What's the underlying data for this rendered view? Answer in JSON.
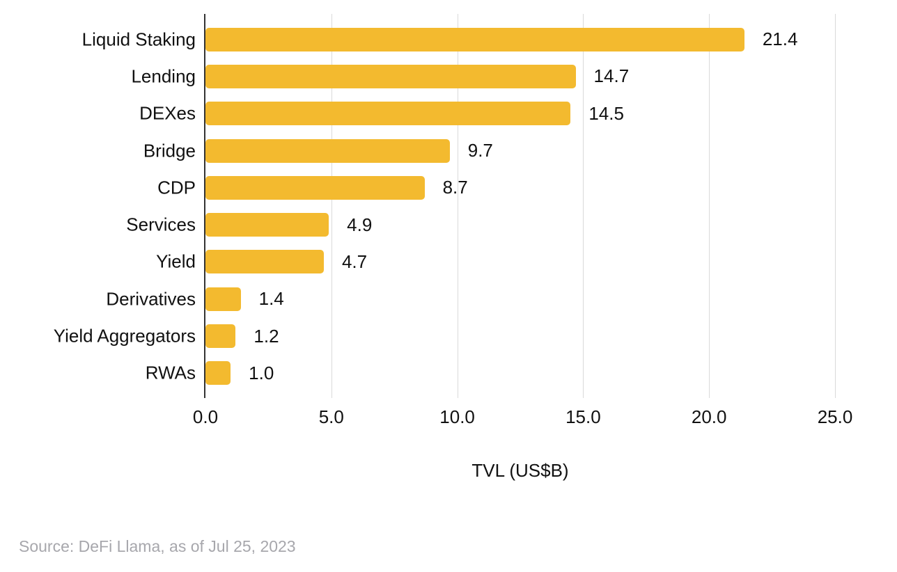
{
  "chart_data": {
    "type": "bar",
    "orientation": "horizontal",
    "title": "",
    "categories": [
      "Liquid Staking",
      "Lending",
      "DEXes",
      "Bridge",
      "CDP",
      "Services",
      "Yield",
      "Derivatives",
      "Yield Aggregators",
      "RWAs"
    ],
    "values": [
      21.4,
      14.7,
      14.5,
      9.7,
      8.7,
      4.9,
      4.7,
      1.4,
      1.2,
      1.0
    ],
    "value_labels": [
      "21.4",
      "14.7",
      "14.5",
      "9.7",
      "8.7",
      "4.9",
      "4.7",
      "1.4",
      "1.2",
      "1.0"
    ],
    "xlabel": "TVL (US$B)",
    "ylabel": "",
    "x_ticks": [
      "0.0",
      "5.0",
      "10.0",
      "15.0",
      "20.0",
      "25.0"
    ],
    "xlim": [
      0,
      25
    ],
    "grid": true,
    "legend": "none",
    "bar_color": "#F3BA2F",
    "gridline_color": "#DADADA",
    "axis_color": "#333333",
    "label_color": "#111111"
  },
  "footer": {
    "source": "Source: DeFi Llama, as of Jul 25, 2023"
  }
}
